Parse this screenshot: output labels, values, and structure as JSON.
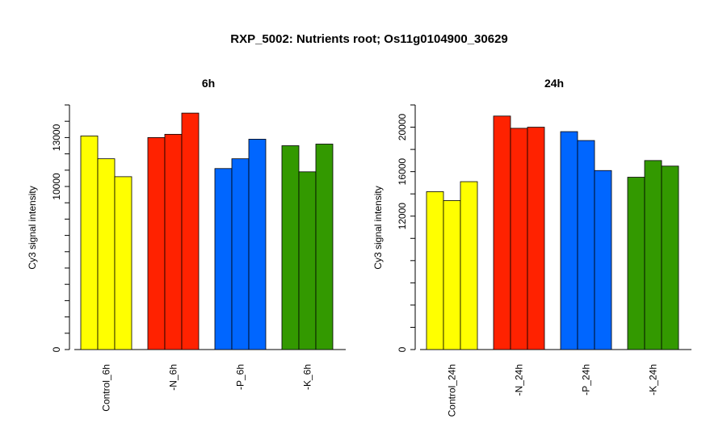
{
  "title": "RXP_5002: Nutrients root; Os11g0104900_30629",
  "chart_data": [
    {
      "type": "bar",
      "title": "6h",
      "ylabel": "Cy3 signal intensity",
      "ylim": [
        0,
        15000
      ],
      "yticks": [
        0,
        10000,
        13000
      ],
      "grid": false,
      "groups": [
        {
          "label": "Control_6h",
          "color": "#ffff00",
          "values": [
            13100,
            11700,
            10600
          ]
        },
        {
          "label": "-N_6h",
          "color": "#ff2200",
          "values": [
            13000,
            13200,
            14500
          ]
        },
        {
          "label": "-P_6h",
          "color": "#0066ff",
          "values": [
            11100,
            11700,
            12900
          ]
        },
        {
          "label": "-K_6h",
          "color": "#339900",
          "values": [
            12500,
            10900,
            12600
          ]
        }
      ]
    },
    {
      "type": "bar",
      "title": "24h",
      "ylabel": "Cy3 signal intensity",
      "ylim": [
        0,
        22000
      ],
      "yticks": [
        0,
        12000,
        16000,
        20000
      ],
      "grid": false,
      "groups": [
        {
          "label": "Control_24h",
          "color": "#ffff00",
          "values": [
            14200,
            13400,
            15100
          ]
        },
        {
          "label": "-N_24h",
          "color": "#ff2200",
          "values": [
            21000,
            19900,
            20000
          ]
        },
        {
          "label": "-P_24h",
          "color": "#0066ff",
          "values": [
            19600,
            18800,
            16100
          ]
        },
        {
          "label": "-K_24h",
          "color": "#339900",
          "values": [
            15500,
            17000,
            16500
          ]
        }
      ]
    }
  ]
}
